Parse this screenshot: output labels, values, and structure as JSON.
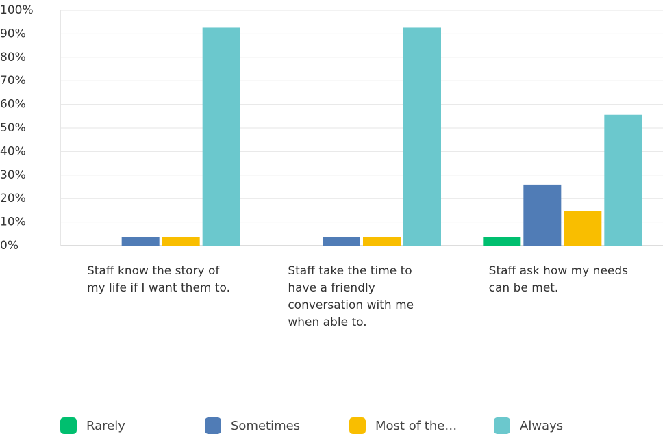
{
  "chart_data": {
    "type": "bar",
    "categories": [
      "Staff know the story of my life if I want them to.",
      "Staff take the time to have a friendly conversation with me when able to.",
      "Staff ask how my needs can be met."
    ],
    "series": [
      {
        "name": "Rarely",
        "color": "#00bf6f",
        "values": [
          0,
          0,
          3.7
        ]
      },
      {
        "name": "Sometimes",
        "color": "#507cb6",
        "values": [
          3.7,
          3.7,
          25.9
        ]
      },
      {
        "name": "Most of the…",
        "color": "#f9be00",
        "values": [
          3.7,
          3.7,
          14.8
        ]
      },
      {
        "name": "Always",
        "color": "#6bc8cd",
        "values": [
          92.6,
          92.6,
          55.6
        ]
      }
    ],
    "ylim": [
      0,
      100
    ],
    "yticks": [
      {
        "value": 0,
        "label": "0%"
      },
      {
        "value": 10,
        "label": "10%"
      },
      {
        "value": 20,
        "label": "20%"
      },
      {
        "value": 30,
        "label": "30%"
      },
      {
        "value": 40,
        "label": "40%"
      },
      {
        "value": 50,
        "label": "50%"
      },
      {
        "value": 60,
        "label": "60%"
      },
      {
        "value": 70,
        "label": "70%"
      },
      {
        "value": 80,
        "label": "80%"
      },
      {
        "value": 90,
        "label": "90%"
      },
      {
        "value": 100,
        "label": "100%"
      }
    ],
    "grid": true
  }
}
